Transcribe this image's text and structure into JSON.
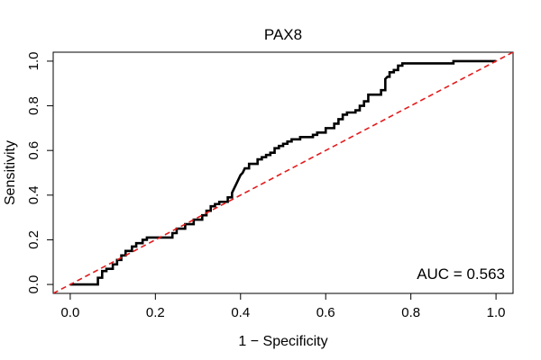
{
  "chart_data": {
    "type": "line",
    "title": "PAX8",
    "xlabel": "1 − Specificity",
    "ylabel": "Sensitivity",
    "xlim": [
      -0.04,
      1.04
    ],
    "ylim": [
      -0.04,
      1.04
    ],
    "x_ticks": [
      0.0,
      0.2,
      0.4,
      0.6,
      0.8,
      1.0
    ],
    "y_ticks": [
      0.0,
      0.2,
      0.4,
      0.6,
      0.8,
      1.0
    ],
    "x_tick_labels": [
      "0.0",
      "0.2",
      "0.4",
      "0.6",
      "0.8",
      "1.0"
    ],
    "y_tick_labels": [
      "0.0",
      "0.2",
      "0.4",
      "0.6",
      "0.8",
      "1.0"
    ],
    "grid": false,
    "annotation": "AUC = 0.563",
    "annotation_position": "bottom-right",
    "series": [
      {
        "style": "solid",
        "color": "#000000",
        "x": [
          0.0,
          0.065,
          0.065,
          0.075,
          0.075,
          0.085,
          0.085,
          0.1,
          0.1,
          0.11,
          0.11,
          0.12,
          0.12,
          0.13,
          0.13,
          0.145,
          0.145,
          0.155,
          0.155,
          0.17,
          0.17,
          0.18,
          0.18,
          0.19,
          0.19,
          0.24,
          0.24,
          0.25,
          0.25,
          0.27,
          0.27,
          0.29,
          0.29,
          0.31,
          0.31,
          0.32,
          0.32,
          0.33,
          0.33,
          0.34,
          0.34,
          0.35,
          0.35,
          0.37,
          0.37,
          0.38,
          0.38,
          0.385,
          0.39,
          0.395,
          0.4,
          0.405,
          0.41,
          0.42,
          0.42,
          0.44,
          0.44,
          0.45,
          0.45,
          0.46,
          0.46,
          0.47,
          0.47,
          0.48,
          0.48,
          0.49,
          0.49,
          0.5,
          0.5,
          0.51,
          0.51,
          0.52,
          0.52,
          0.54,
          0.54,
          0.55,
          0.55,
          0.57,
          0.57,
          0.58,
          0.58,
          0.6,
          0.6,
          0.62,
          0.62,
          0.63,
          0.63,
          0.64,
          0.64,
          0.65,
          0.65,
          0.66,
          0.66,
          0.67,
          0.67,
          0.68,
          0.68,
          0.69,
          0.69,
          0.7,
          0.7,
          0.73,
          0.73,
          0.74,
          0.74,
          0.745,
          0.75,
          0.75,
          0.76,
          0.76,
          0.77,
          0.77,
          0.78,
          0.78,
          0.9,
          0.9,
          1.0
        ],
        "y": [
          0.0,
          0.0,
          0.03,
          0.03,
          0.06,
          0.06,
          0.07,
          0.07,
          0.09,
          0.09,
          0.11,
          0.11,
          0.13,
          0.13,
          0.15,
          0.15,
          0.17,
          0.17,
          0.185,
          0.185,
          0.2,
          0.2,
          0.21,
          0.21,
          0.21,
          0.21,
          0.23,
          0.23,
          0.25,
          0.25,
          0.27,
          0.27,
          0.29,
          0.29,
          0.31,
          0.31,
          0.33,
          0.33,
          0.35,
          0.35,
          0.36,
          0.36,
          0.37,
          0.37,
          0.39,
          0.39,
          0.41,
          0.43,
          0.45,
          0.47,
          0.49,
          0.5,
          0.52,
          0.52,
          0.54,
          0.54,
          0.56,
          0.56,
          0.57,
          0.57,
          0.58,
          0.58,
          0.59,
          0.59,
          0.61,
          0.61,
          0.62,
          0.62,
          0.63,
          0.63,
          0.64,
          0.64,
          0.65,
          0.65,
          0.66,
          0.66,
          0.66,
          0.66,
          0.67,
          0.67,
          0.68,
          0.68,
          0.7,
          0.7,
          0.72,
          0.72,
          0.74,
          0.74,
          0.76,
          0.76,
          0.77,
          0.77,
          0.77,
          0.77,
          0.78,
          0.78,
          0.8,
          0.8,
          0.82,
          0.82,
          0.85,
          0.85,
          0.87,
          0.87,
          0.92,
          0.93,
          0.93,
          0.95,
          0.95,
          0.96,
          0.96,
          0.98,
          0.98,
          0.99,
          0.99,
          1.0,
          1.0
        ]
      },
      {
        "style": "dashed",
        "color": "#e41a1c",
        "x": [
          -0.04,
          1.04
        ],
        "y": [
          -0.04,
          1.04
        ]
      }
    ]
  }
}
